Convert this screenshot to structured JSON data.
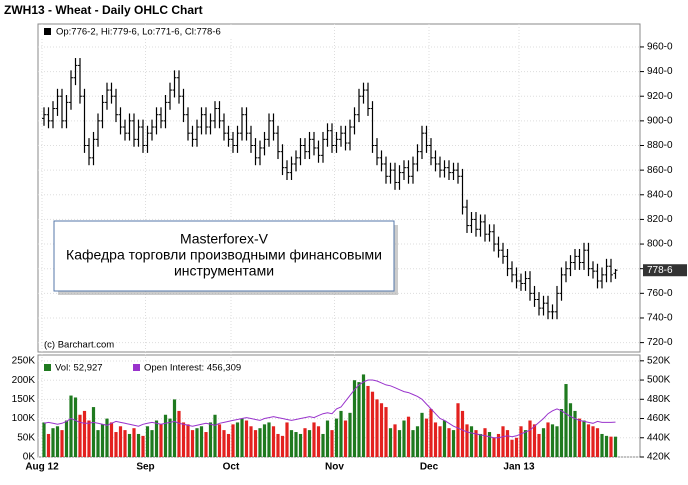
{
  "chart_data": [
    {
      "type": "ohlc",
      "title": "ZWH13 - Wheat - Daily OHLC Chart",
      "legend": "Op:776-2, Hi:779-6, Lo:771-6, Cl:778-6",
      "credit": "(c) Barchart.com",
      "annotation": [
        "Masterforex-V",
        "Кафедра торговли производными финансовыми",
        "инструментами"
      ],
      "last_price": {
        "value": 778.75,
        "label": "778-6"
      },
      "color": "#000000",
      "categories": [
        "Aug 12",
        null,
        null,
        null,
        null,
        null,
        null,
        null,
        null,
        null,
        null,
        null,
        null,
        null,
        null,
        null,
        null,
        null,
        null,
        null,
        null,
        null,
        null,
        "Sep",
        null,
        null,
        null,
        null,
        null,
        null,
        null,
        null,
        null,
        null,
        null,
        null,
        null,
        null,
        null,
        null,
        null,
        null,
        "Oct",
        null,
        null,
        null,
        null,
        null,
        null,
        null,
        null,
        null,
        null,
        null,
        null,
        null,
        null,
        null,
        null,
        null,
        null,
        null,
        null,
        null,
        null,
        "Nov",
        null,
        null,
        null,
        null,
        null,
        null,
        null,
        null,
        null,
        null,
        null,
        null,
        null,
        null,
        null,
        null,
        null,
        null,
        null,
        null,
        "Dec",
        null,
        null,
        null,
        null,
        null,
        null,
        null,
        null,
        null,
        null,
        null,
        null,
        null,
        null,
        null,
        null,
        null,
        null,
        null,
        "Jan 13",
        null,
        null,
        null,
        null,
        null,
        null,
        null,
        null,
        null,
        null,
        null,
        null,
        null,
        null,
        null,
        null,
        null,
        null,
        null,
        null,
        null
      ],
      "open": [
        902,
        905,
        900,
        910,
        920,
        900,
        915,
        935,
        945,
        920,
        880,
        870,
        885,
        900,
        915,
        925,
        920,
        905,
        895,
        890,
        900,
        885,
        895,
        880,
        890,
        895,
        905,
        900,
        915,
        925,
        935,
        920,
        905,
        890,
        885,
        895,
        905,
        895,
        900,
        910,
        900,
        890,
        885,
        880,
        890,
        905,
        890,
        880,
        870,
        878,
        885,
        900,
        890,
        875,
        862,
        858,
        865,
        870,
        880,
        875,
        885,
        878,
        872,
        885,
        892,
        880,
        885,
        890,
        882,
        895,
        905,
        920,
        925,
        910,
        880,
        870,
        865,
        855,
        860,
        850,
        858,
        862,
        855,
        865,
        875,
        890,
        880,
        870,
        865,
        860,
        862,
        858,
        860,
        855,
        830,
        815,
        820,
        812,
        818,
        808,
        810,
        800,
        795,
        790,
        780,
        775,
        770,
        768,
        772,
        760,
        755,
        748,
        752,
        745,
        745,
        760,
        775,
        780,
        785,
        790,
        785,
        795,
        780,
        778,
        770,
        775,
        782,
        776.25
      ],
      "high": [
        911,
        911,
        916,
        926,
        926,
        921,
        941,
        951,
        951,
        926,
        886,
        891,
        906,
        921,
        931,
        931,
        926,
        911,
        901,
        906,
        906,
        901,
        901,
        896,
        901,
        911,
        911,
        921,
        931,
        941,
        941,
        926,
        911,
        896,
        901,
        911,
        911,
        906,
        916,
        916,
        906,
        896,
        891,
        896,
        911,
        911,
        896,
        886,
        884,
        891,
        906,
        906,
        896,
        881,
        868,
        871,
        876,
        886,
        886,
        891,
        891,
        884,
        891,
        898,
        898,
        891,
        896,
        896,
        901,
        911,
        926,
        931,
        931,
        916,
        886,
        876,
        871,
        866,
        866,
        864,
        868,
        868,
        871,
        881,
        896,
        896,
        886,
        876,
        871,
        868,
        868,
        866,
        866,
        861,
        836,
        826,
        826,
        824,
        824,
        816,
        816,
        806,
        801,
        796,
        786,
        781,
        776,
        778,
        778,
        766,
        761,
        758,
        758,
        751,
        766,
        781,
        786,
        791,
        796,
        796,
        801,
        801,
        786,
        784,
        781,
        788,
        788,
        779.75
      ],
      "low": [
        896,
        894,
        894,
        904,
        894,
        894,
        909,
        929,
        914,
        874,
        864,
        864,
        879,
        894,
        909,
        914,
        899,
        889,
        884,
        884,
        879,
        879,
        874,
        874,
        884,
        889,
        894,
        894,
        909,
        919,
        914,
        899,
        884,
        879,
        879,
        889,
        889,
        889,
        894,
        894,
        884,
        879,
        874,
        874,
        884,
        884,
        874,
        864,
        864,
        872,
        879,
        884,
        869,
        856,
        852,
        852,
        859,
        864,
        869,
        869,
        872,
        866,
        866,
        879,
        874,
        874,
        879,
        876,
        876,
        889,
        899,
        914,
        904,
        874,
        864,
        859,
        849,
        849,
        844,
        844,
        852,
        849,
        849,
        859,
        869,
        874,
        864,
        859,
        854,
        854,
        852,
        852,
        849,
        824,
        809,
        809,
        806,
        806,
        802,
        802,
        794,
        789,
        784,
        774,
        769,
        764,
        762,
        762,
        754,
        749,
        742,
        742,
        739,
        739,
        739,
        754,
        769,
        774,
        779,
        779,
        779,
        774,
        772,
        764,
        764,
        769,
        769,
        771.75
      ],
      "close": [
        905,
        900,
        910,
        920,
        900,
        915,
        935,
        945,
        920,
        880,
        870,
        885,
        900,
        915,
        925,
        920,
        905,
        895,
        890,
        900,
        885,
        895,
        880,
        890,
        895,
        905,
        900,
        915,
        925,
        935,
        920,
        905,
        890,
        885,
        895,
        905,
        895,
        900,
        910,
        900,
        890,
        885,
        880,
        890,
        905,
        890,
        880,
        870,
        878,
        885,
        900,
        890,
        875,
        862,
        858,
        865,
        870,
        880,
        875,
        885,
        878,
        872,
        885,
        892,
        880,
        885,
        890,
        882,
        895,
        905,
        920,
        925,
        910,
        880,
        870,
        865,
        855,
        860,
        850,
        858,
        862,
        855,
        865,
        875,
        890,
        880,
        870,
        865,
        860,
        862,
        858,
        860,
        855,
        830,
        815,
        820,
        812,
        818,
        808,
        810,
        800,
        795,
        790,
        780,
        775,
        770,
        768,
        772,
        760,
        755,
        748,
        752,
        745,
        745,
        760,
        775,
        780,
        785,
        790,
        785,
        795,
        780,
        778,
        770,
        775,
        782,
        775,
        778.75
      ],
      "ylim": [
        714,
        977
      ],
      "yticks": [
        {
          "value": 720,
          "label": "720-0"
        },
        {
          "value": 740,
          "label": "740-0"
        },
        {
          "value": 760,
          "label": "760-0"
        },
        {
          "value": 780,
          "label": "780-0"
        },
        {
          "value": 800,
          "label": "800-0"
        },
        {
          "value": 820,
          "label": "820-0"
        },
        {
          "value": 840,
          "label": "840-0"
        },
        {
          "value": 860,
          "label": "860-0"
        },
        {
          "value": 880,
          "label": "880-0"
        },
        {
          "value": 900,
          "label": "900-0"
        },
        {
          "value": 920,
          "label": "920-0"
        },
        {
          "value": 940,
          "label": "940-0"
        },
        {
          "value": 960,
          "label": "960-0"
        }
      ],
      "grid": true
    },
    {
      "type": "volume",
      "series": [
        {
          "name": "Vol: 52,927",
          "color": "#1f7a1f",
          "down_color": "#e3211f",
          "values": [
            90000,
            60000,
            75000,
            80000,
            70000,
            95000,
            160000,
            155000,
            110000,
            120000,
            95000,
            130000,
            70000,
            85000,
            100000,
            90000,
            65000,
            80000,
            70000,
            60000,
            75000,
            60000,
            55000,
            80000,
            70000,
            95000,
            85000,
            110000,
            100000,
            150000,
            120000,
            90000,
            85000,
            70000,
            75000,
            80000,
            65000,
            90000,
            110000,
            85000,
            70000,
            60000,
            85000,
            90000,
            100000,
            95000,
            80000,
            70000,
            75000,
            85000,
            90000,
            80000,
            60000,
            55000,
            90000,
            70000,
            65000,
            60000,
            75000,
            70000,
            90000,
            80000,
            60000,
            95000,
            70000,
            100000,
            120000,
            95000,
            115000,
            200000,
            195000,
            215000,
            185000,
            170000,
            150000,
            140000,
            130000,
            75000,
            85000,
            70000,
            95000,
            105000,
            70000,
            80000,
            115000,
            100000,
            125000,
            90000,
            80000,
            95000,
            75000,
            70000,
            140000,
            120000,
            85000,
            80000,
            70000,
            60000,
            75000,
            65000,
            50000,
            60000,
            80000,
            70000,
            45000,
            50000,
            80000,
            70000,
            95000,
            85000,
            60000,
            75000,
            90000,
            85000,
            80000,
            125000,
            190000,
            140000,
            120000,
            100000,
            95000,
            85000,
            80000,
            75000,
            60000,
            55000,
            53000,
            52927
          ]
        },
        {
          "name": "Open Interest: 456,309",
          "color": "#9933cc",
          "axis": "y2",
          "values": [
            455000,
            456000,
            455000,
            454000,
            455000,
            457000,
            460000,
            458000,
            456000,
            455000,
            455000,
            456000,
            455000,
            454000,
            453000,
            455000,
            457000,
            456000,
            455000,
            454000,
            453000,
            452000,
            454000,
            455000,
            456000,
            455000,
            454000,
            455000,
            456000,
            457000,
            455000,
            454000,
            453000,
            452000,
            453000,
            454000,
            455000,
            454000,
            453000,
            455000,
            456000,
            457000,
            458000,
            459000,
            460000,
            461000,
            460000,
            459000,
            458000,
            460000,
            461000,
            462000,
            461000,
            460000,
            459000,
            458000,
            459000,
            460000,
            461000,
            462000,
            461000,
            463000,
            465000,
            466000,
            465000,
            470000,
            472000,
            478000,
            484000,
            490000,
            495000,
            498000,
            500000,
            500000,
            499000,
            497000,
            495000,
            494000,
            492000,
            490000,
            488000,
            487000,
            485000,
            483000,
            480000,
            475000,
            470000,
            465000,
            460000,
            458000,
            455000,
            452000,
            450000,
            448000,
            446000,
            445000,
            444000,
            443000,
            442000,
            441000,
            440000,
            440000,
            441000,
            442000,
            441000,
            442000,
            444000,
            446000,
            448000,
            452000,
            456000,
            460000,
            465000,
            468000,
            470000,
            468000,
            465000,
            462000,
            460000,
            458000,
            457000,
            456000,
            455000,
            457000,
            456000,
            456000,
            456000,
            456309
          ]
        }
      ],
      "ylim": [
        0,
        263000
      ],
      "yticks": [
        {
          "value": 0,
          "label": "0K"
        },
        {
          "value": 50000,
          "label": "50K"
        },
        {
          "value": 100000,
          "label": "100K"
        },
        {
          "value": 150000,
          "label": "150K"
        },
        {
          "value": 200000,
          "label": "200K"
        },
        {
          "value": 250000,
          "label": "250K"
        }
      ],
      "y2lim": [
        420000,
        525000
      ],
      "y2ticks": [
        {
          "value": 420000,
          "label": "420K"
        },
        {
          "value": 440000,
          "label": "440K"
        },
        {
          "value": 460000,
          "label": "460K"
        },
        {
          "value": 480000,
          "label": "480K"
        },
        {
          "value": 500000,
          "label": "500K"
        },
        {
          "value": 520000,
          "label": "520K"
        }
      ],
      "grid": true
    }
  ]
}
